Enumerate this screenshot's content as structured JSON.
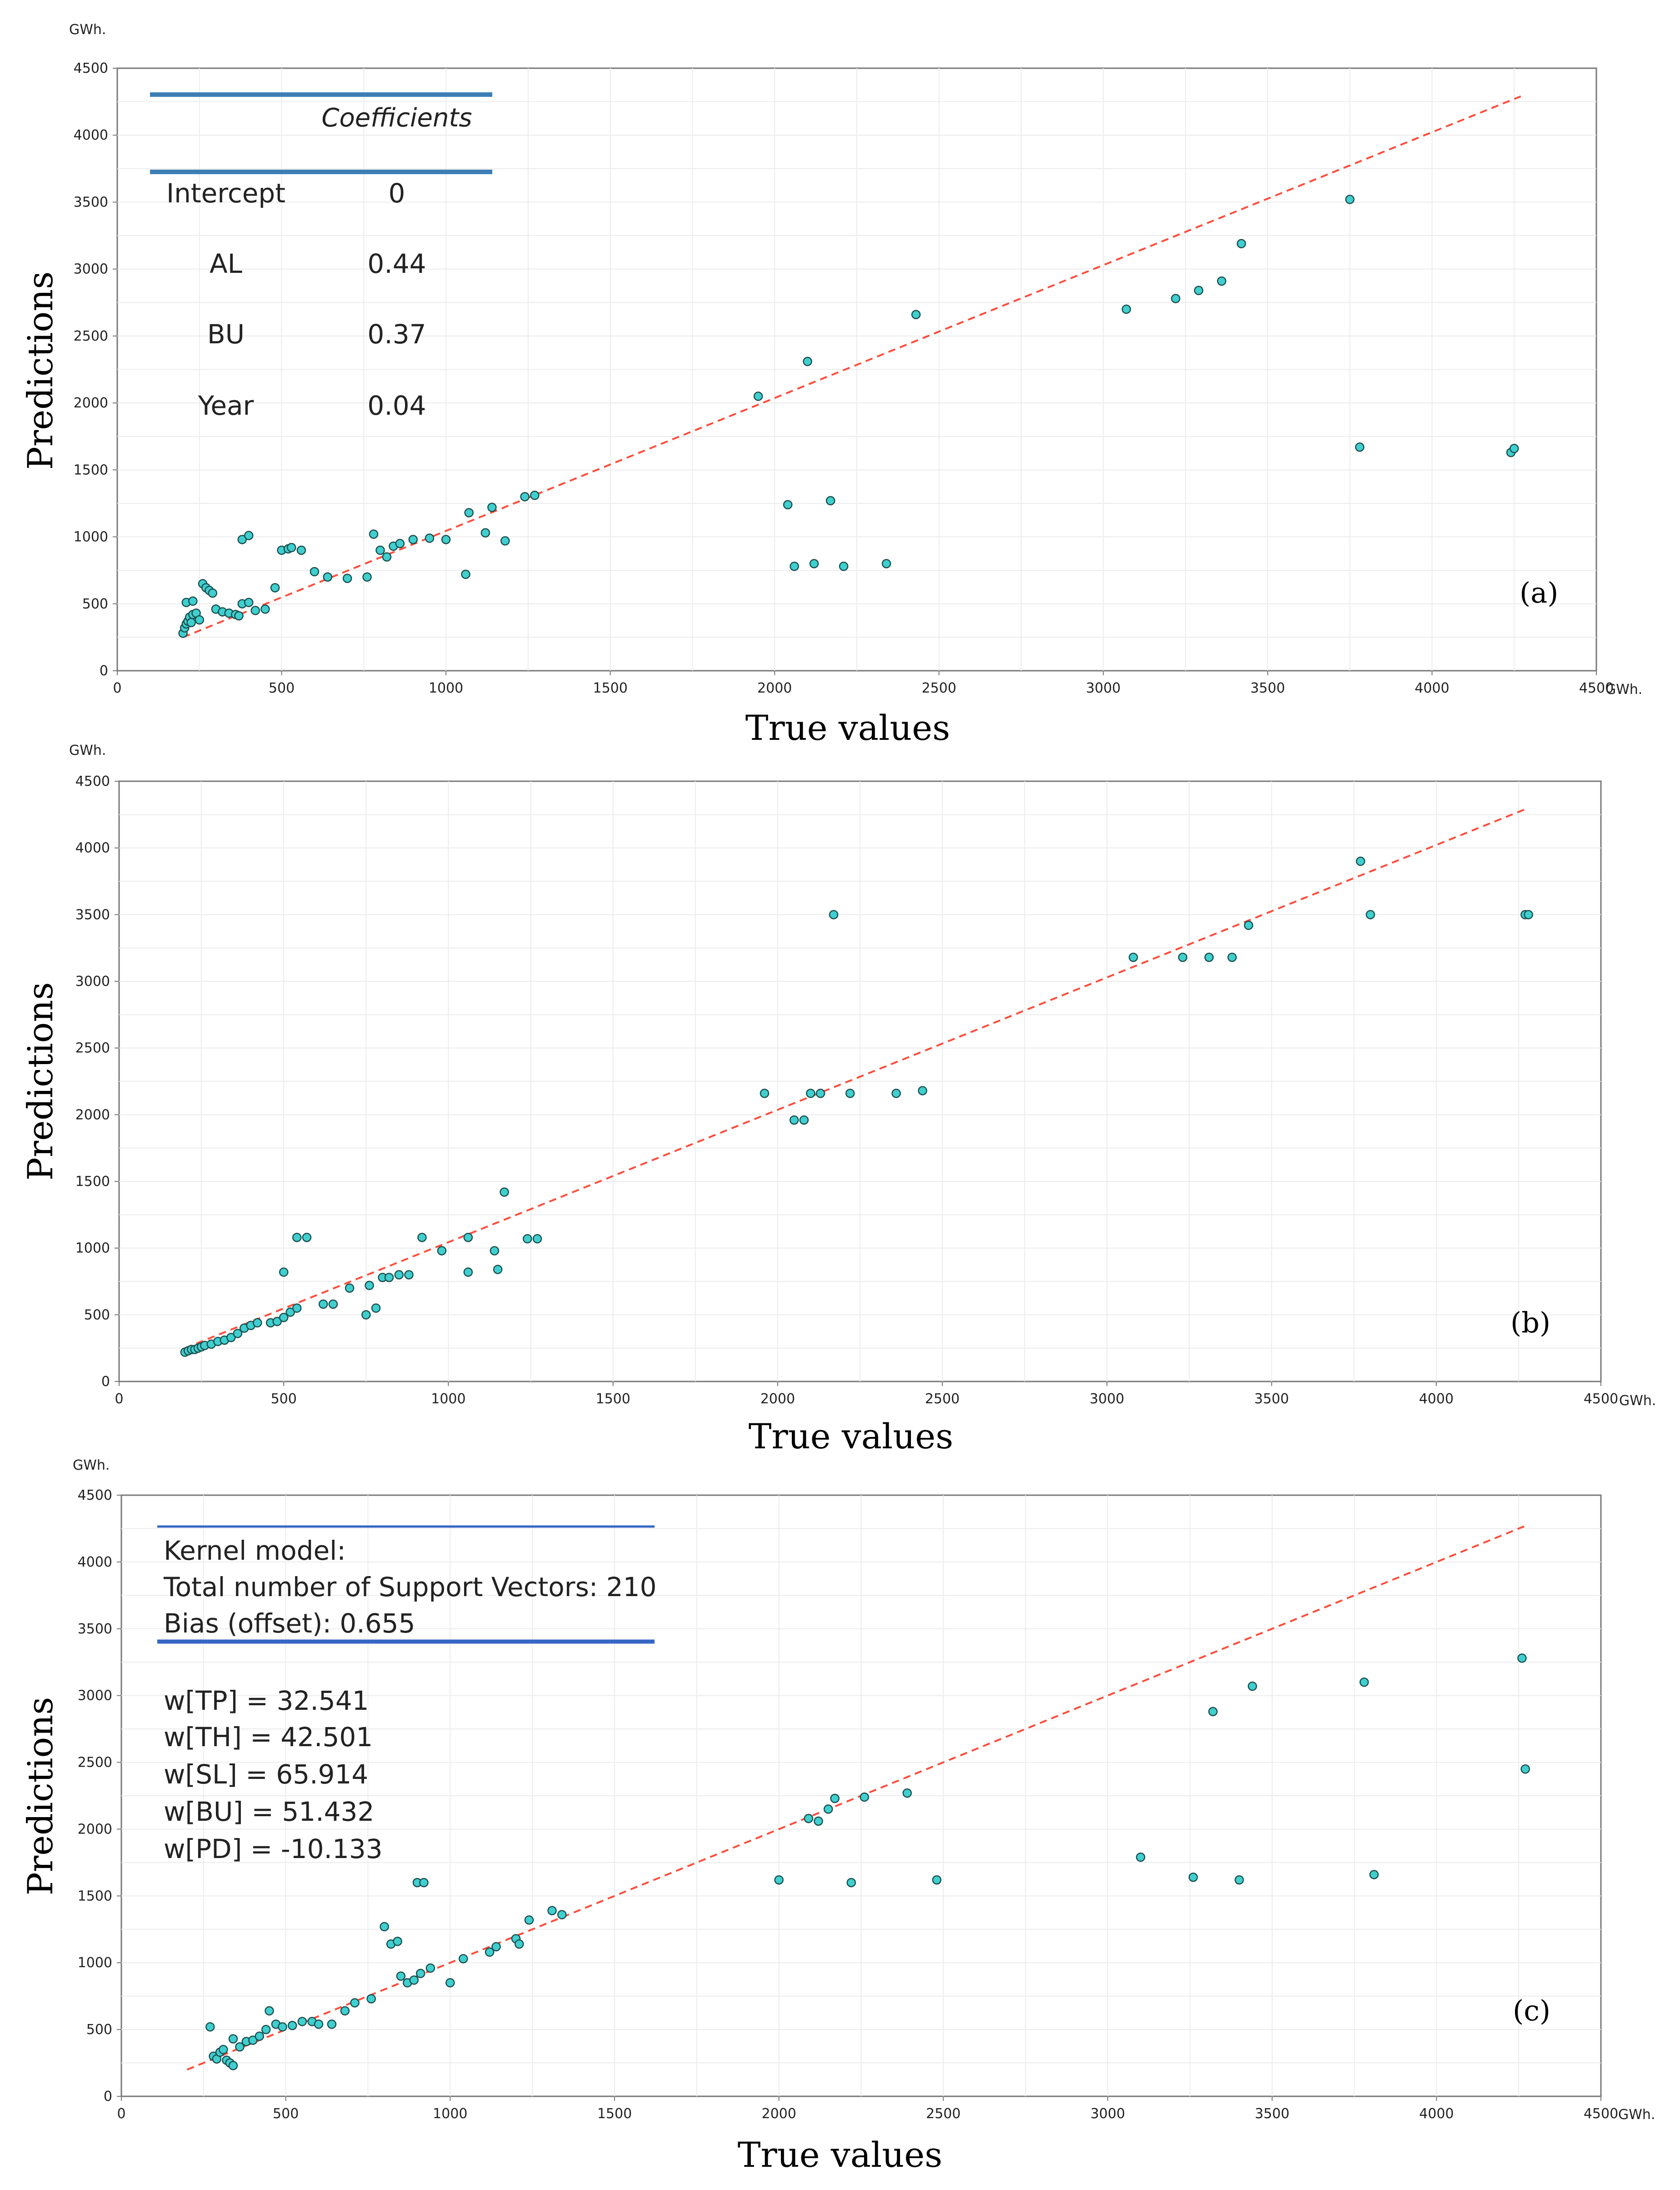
{
  "chart_data": [
    {
      "type": "scatter",
      "panel_label": "(a)",
      "xlabel": "True values",
      "ylabel": "Predictions",
      "x_unit": "GWh.",
      "y_unit": "GWh.",
      "xlim": [
        0,
        4500
      ],
      "ylim": [
        0,
        4500
      ],
      "x_ticks": [
        "0",
        "500",
        "1000",
        "1500",
        "2000",
        "2500",
        "3000",
        "3500",
        "4000",
        "4500"
      ],
      "y_ticks": [
        "0",
        "500",
        "1000",
        "1500",
        "2000",
        "2500",
        "3000",
        "3500",
        "4000",
        "4500"
      ],
      "reference_line": {
        "x": [
          200,
          4270
        ],
        "y": [
          250,
          4290
        ]
      },
      "table": {
        "header": "Coefficients",
        "rows": [
          {
            "name": "Intercept",
            "value": "0"
          },
          {
            "name": "AL",
            "value": "0.44"
          },
          {
            "name": "BU",
            "value": "0.37"
          },
          {
            "name": "Year",
            "value": "0.04"
          }
        ]
      },
      "points": [
        [
          200,
          280
        ],
        [
          205,
          320
        ],
        [
          210,
          350
        ],
        [
          215,
          370
        ],
        [
          220,
          400
        ],
        [
          225,
          360
        ],
        [
          230,
          420
        ],
        [
          240,
          430
        ],
        [
          210,
          510
        ],
        [
          230,
          520
        ],
        [
          250,
          380
        ],
        [
          260,
          650
        ],
        [
          270,
          620
        ],
        [
          280,
          600
        ],
        [
          290,
          580
        ],
        [
          300,
          460
        ],
        [
          320,
          440
        ],
        [
          340,
          430
        ],
        [
          360,
          420
        ],
        [
          370,
          410
        ],
        [
          380,
          500
        ],
        [
          400,
          510
        ],
        [
          380,
          980
        ],
        [
          400,
          1010
        ],
        [
          420,
          450
        ],
        [
          450,
          460
        ],
        [
          480,
          620
        ],
        [
          500,
          900
        ],
        [
          520,
          910
        ],
        [
          530,
          920
        ],
        [
          560,
          900
        ],
        [
          600,
          740
        ],
        [
          640,
          700
        ],
        [
          700,
          690
        ],
        [
          760,
          700
        ],
        [
          780,
          1020
        ],
        [
          800,
          900
        ],
        [
          820,
          850
        ],
        [
          840,
          930
        ],
        [
          860,
          950
        ],
        [
          900,
          980
        ],
        [
          950,
          990
        ],
        [
          1000,
          980
        ],
        [
          1060,
          720
        ],
        [
          1070,
          1180
        ],
        [
          1120,
          1030
        ],
        [
          1140,
          1220
        ],
        [
          1180,
          970
        ],
        [
          1240,
          1300
        ],
        [
          1270,
          1310
        ],
        [
          1950,
          2050
        ],
        [
          2040,
          1240
        ],
        [
          2060,
          780
        ],
        [
          2100,
          2310
        ],
        [
          2120,
          800
        ],
        [
          2170,
          1270
        ],
        [
          2210,
          780
        ],
        [
          2340,
          800
        ],
        [
          2430,
          2660
        ],
        [
          3070,
          2700
        ],
        [
          3220,
          2780
        ],
        [
          3290,
          2840
        ],
        [
          3360,
          2910
        ],
        [
          3420,
          3190
        ],
        [
          3750,
          3520
        ],
        [
          3780,
          1670
        ],
        [
          4240,
          1630
        ],
        [
          4250,
          1660
        ]
      ]
    },
    {
      "type": "scatter",
      "panel_label": "(b)",
      "xlabel": "True values",
      "ylabel": "Predictions",
      "x_unit": "GWh.",
      "y_unit": "GWh.",
      "xlim": [
        0,
        4500
      ],
      "ylim": [
        0,
        4500
      ],
      "x_ticks": [
        "0",
        "500",
        "1000",
        "1500",
        "2000",
        "2500",
        "3000",
        "3500",
        "4000",
        "4500"
      ],
      "y_ticks": [
        "0",
        "500",
        "1000",
        "1500",
        "2000",
        "2500",
        "3000",
        "3500",
        "4000",
        "4500"
      ],
      "reference_line": {
        "x": [
          200,
          4270
        ],
        "y": [
          250,
          4290
        ]
      },
      "points": [
        [
          200,
          220
        ],
        [
          210,
          230
        ],
        [
          220,
          240
        ],
        [
          230,
          240
        ],
        [
          240,
          250
        ],
        [
          250,
          260
        ],
        [
          260,
          270
        ],
        [
          280,
          280
        ],
        [
          300,
          300
        ],
        [
          320,
          310
        ],
        [
          340,
          330
        ],
        [
          360,
          360
        ],
        [
          380,
          400
        ],
        [
          400,
          420
        ],
        [
          420,
          440
        ],
        [
          460,
          440
        ],
        [
          480,
          450
        ],
        [
          500,
          480
        ],
        [
          520,
          520
        ],
        [
          540,
          550
        ],
        [
          500,
          820
        ],
        [
          540,
          1080
        ],
        [
          570,
          1080
        ],
        [
          620,
          580
        ],
        [
          650,
          580
        ],
        [
          700,
          700
        ],
        [
          750,
          500
        ],
        [
          760,
          720
        ],
        [
          780,
          550
        ],
        [
          800,
          780
        ],
        [
          820,
          780
        ],
        [
          850,
          800
        ],
        [
          880,
          800
        ],
        [
          920,
          1080
        ],
        [
          980,
          980
        ],
        [
          1060,
          820
        ],
        [
          1060,
          1080
        ],
        [
          1140,
          980
        ],
        [
          1150,
          840
        ],
        [
          1170,
          1420
        ],
        [
          1240,
          1070
        ],
        [
          1270,
          1070
        ],
        [
          1960,
          2160
        ],
        [
          2050,
          1960
        ],
        [
          2080,
          1960
        ],
        [
          2100,
          2160
        ],
        [
          2130,
          2160
        ],
        [
          2170,
          3500
        ],
        [
          2220,
          2160
        ],
        [
          2360,
          2160
        ],
        [
          2440,
          2180
        ],
        [
          3080,
          3180
        ],
        [
          3230,
          3180
        ],
        [
          3310,
          3180
        ],
        [
          3380,
          3180
        ],
        [
          3430,
          3420
        ],
        [
          3770,
          3900
        ],
        [
          3800,
          3500
        ],
        [
          4270,
          3500
        ],
        [
          4280,
          3500
        ]
      ]
    },
    {
      "type": "scatter",
      "panel_label": "(c)",
      "xlabel": "True values",
      "ylabel": "Predictions",
      "x_unit": "GWh.",
      "y_unit": "GWh.",
      "xlim": [
        0,
        4500
      ],
      "ylim": [
        0,
        4500
      ],
      "x_ticks": [
        "0",
        "500",
        "1000",
        "1500",
        "2000",
        "2500",
        "3000",
        "3500",
        "4000",
        "4500"
      ],
      "y_ticks": [
        "0",
        "500",
        "1000",
        "1500",
        "2000",
        "2500",
        "3000",
        "3500",
        "4000",
        "4500"
      ],
      "reference_line": {
        "x": [
          200,
          4270
        ],
        "y": [
          200,
          4270
        ]
      },
      "text_box": {
        "title_lines": [
          "Kernel model:",
          "Total number of Support Vectors: 210",
          "Bias (offset): 0.655"
        ],
        "weights": [
          "w[TP] = 32.541",
          "w[TH] = 42.501",
          "w[SL] = 65.914",
          "w[BU] = 51.432",
          "w[PD] = -10.133"
        ]
      },
      "points": [
        [
          270,
          520
        ],
        [
          280,
          300
        ],
        [
          290,
          280
        ],
        [
          300,
          330
        ],
        [
          310,
          350
        ],
        [
          320,
          270
        ],
        [
          330,
          250
        ],
        [
          340,
          230
        ],
        [
          340,
          430
        ],
        [
          360,
          370
        ],
        [
          380,
          410
        ],
        [
          400,
          420
        ],
        [
          420,
          450
        ],
        [
          440,
          500
        ],
        [
          450,
          640
        ],
        [
          470,
          540
        ],
        [
          490,
          520
        ],
        [
          520,
          530
        ],
        [
          550,
          560
        ],
        [
          580,
          560
        ],
        [
          600,
          540
        ],
        [
          640,
          540
        ],
        [
          680,
          640
        ],
        [
          710,
          700
        ],
        [
          760,
          730
        ],
        [
          800,
          1270
        ],
        [
          820,
          1140
        ],
        [
          840,
          1160
        ],
        [
          850,
          900
        ],
        [
          870,
          850
        ],
        [
          890,
          870
        ],
        [
          910,
          920
        ],
        [
          940,
          960
        ],
        [
          900,
          1600
        ],
        [
          920,
          1600
        ],
        [
          1000,
          850
        ],
        [
          1040,
          1030
        ],
        [
          1120,
          1080
        ],
        [
          1140,
          1120
        ],
        [
          1200,
          1180
        ],
        [
          1210,
          1140
        ],
        [
          1240,
          1320
        ],
        [
          1310,
          1390
        ],
        [
          1340,
          1360
        ],
        [
          2000,
          1620
        ],
        [
          2090,
          2080
        ],
        [
          2120,
          2060
        ],
        [
          2150,
          2150
        ],
        [
          2170,
          2230
        ],
        [
          2220,
          1600
        ],
        [
          2260,
          2240
        ],
        [
          2390,
          2270
        ],
        [
          2480,
          1620
        ],
        [
          3100,
          1790
        ],
        [
          3260,
          1640
        ],
        [
          3320,
          2880
        ],
        [
          3400,
          1620
        ],
        [
          3440,
          3070
        ],
        [
          3780,
          3100
        ],
        [
          3810,
          1660
        ],
        [
          4260,
          3280
        ],
        [
          4270,
          2450
        ]
      ]
    }
  ],
  "colors": {
    "marker_fill": "#40CFCF",
    "marker_edge": "#1a4d4d",
    "reference_line": "#ff4b3a",
    "grid": "#ececec",
    "table_rule_a": "#3d7fb5",
    "table_rule_c": "#3566c4"
  }
}
